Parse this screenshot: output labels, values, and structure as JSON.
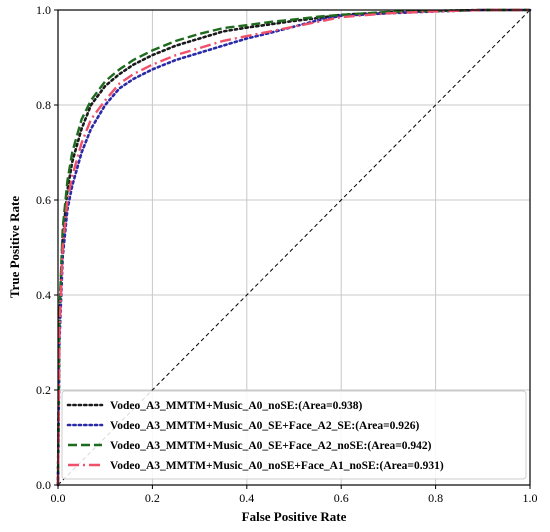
{
  "chart_data": {
    "type": "line",
    "title": "",
    "xlabel": "False Positive Rate",
    "ylabel": "True Positive Rate",
    "xlim": [
      0,
      1
    ],
    "ylim": [
      0,
      1
    ],
    "xticks": [
      "0.0",
      "0.2",
      "0.4",
      "0.6",
      "0.8",
      "1.0"
    ],
    "yticks": [
      "0.0",
      "0.2",
      "0.4",
      "0.6",
      "0.8",
      "1.0"
    ],
    "grid": true,
    "legend_position": "bottom-right",
    "diagonal": {
      "x": [
        0,
        1
      ],
      "y": [
        0,
        1
      ],
      "color": "#000000",
      "style": "dashed"
    },
    "series": [
      {
        "name": "Vodeo_A3_MMTM+Music_A0_noSE:(Area=0.938)",
        "color": "#1a1a1a",
        "style": "dotted",
        "x": [
          0,
          0.003,
          0.01,
          0.02,
          0.03,
          0.05,
          0.07,
          0.1,
          0.13,
          0.16,
          0.2,
          0.25,
          0.3,
          0.35,
          0.4,
          0.45,
          0.5,
          0.55,
          0.6,
          0.7,
          0.8,
          0.9,
          1.0
        ],
        "y": [
          0,
          0.35,
          0.52,
          0.62,
          0.68,
          0.75,
          0.8,
          0.84,
          0.865,
          0.885,
          0.905,
          0.925,
          0.94,
          0.955,
          0.963,
          0.97,
          0.977,
          0.983,
          0.99,
          0.995,
          0.998,
          1.0,
          1.0
        ]
      },
      {
        "name": "Vodeo_A3_MMTM+Music_A0_SE+Face_A2_SE:(Area=0.926)",
        "color": "#2a2aa8",
        "style": "dotted",
        "x": [
          0,
          0.003,
          0.01,
          0.02,
          0.03,
          0.05,
          0.07,
          0.1,
          0.13,
          0.16,
          0.2,
          0.25,
          0.3,
          0.35,
          0.4,
          0.45,
          0.5,
          0.55,
          0.6,
          0.7,
          0.8,
          0.9,
          1.0
        ],
        "y": [
          0,
          0.3,
          0.48,
          0.58,
          0.63,
          0.7,
          0.75,
          0.8,
          0.835,
          0.855,
          0.875,
          0.895,
          0.91,
          0.925,
          0.94,
          0.952,
          0.965,
          0.978,
          0.988,
          0.993,
          0.997,
          1.0,
          1.0
        ]
      },
      {
        "name": "Vodeo_A3_MMTM+Music_A0_SE+Face_A2_noSE:(Area=0.942)",
        "color": "#1e6b1e",
        "style": "dashed",
        "x": [
          0,
          0.003,
          0.01,
          0.02,
          0.03,
          0.05,
          0.07,
          0.1,
          0.13,
          0.16,
          0.2,
          0.25,
          0.3,
          0.35,
          0.4,
          0.45,
          0.5,
          0.55,
          0.6,
          0.7,
          0.8,
          0.9,
          1.0
        ],
        "y": [
          0,
          0.36,
          0.54,
          0.64,
          0.7,
          0.77,
          0.81,
          0.85,
          0.875,
          0.895,
          0.915,
          0.935,
          0.95,
          0.962,
          0.968,
          0.975,
          0.98,
          0.986,
          0.99,
          0.996,
          0.998,
          1.0,
          1.0
        ]
      },
      {
        "name": "Vodeo_A3_MMTM+Music_A0_noSE+Face_A1_noSE:(Area=0.931)",
        "color": "#f0506a",
        "style": "dashdot",
        "x": [
          0,
          0.003,
          0.01,
          0.02,
          0.03,
          0.05,
          0.07,
          0.1,
          0.13,
          0.16,
          0.2,
          0.25,
          0.3,
          0.35,
          0.4,
          0.45,
          0.5,
          0.55,
          0.6,
          0.7,
          0.8,
          0.9,
          1.0
        ],
        "y": [
          0,
          0.32,
          0.5,
          0.6,
          0.65,
          0.72,
          0.77,
          0.81,
          0.845,
          0.865,
          0.885,
          0.905,
          0.92,
          0.935,
          0.945,
          0.955,
          0.965,
          0.975,
          0.985,
          0.993,
          0.997,
          1.0,
          1.0
        ]
      }
    ]
  }
}
